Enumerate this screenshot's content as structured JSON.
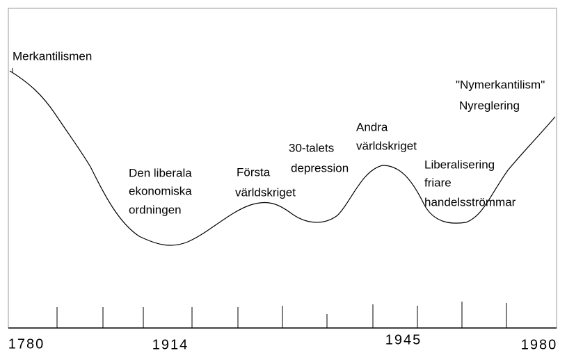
{
  "annotations": [
    {
      "lines": [
        "Merkantilismen"
      ]
    },
    {
      "lines": [
        "Den liberala",
        "ekonomiska",
        "ordningen"
      ]
    },
    {
      "lines": [
        "Första",
        "världskriget"
      ]
    },
    {
      "lines": [
        "30-talets",
        "depression"
      ]
    },
    {
      "lines": [
        "Andra",
        "världskriget"
      ]
    },
    {
      "lines": [
        "Liberalisering",
        "friare",
        "handelsströmmar"
      ]
    },
    {
      "lines": [
        "\"Nymerkantilism\"",
        "Nyreglering"
      ]
    }
  ],
  "axis_labels": [
    "1780",
    "1914",
    "1945",
    "1980"
  ]
}
